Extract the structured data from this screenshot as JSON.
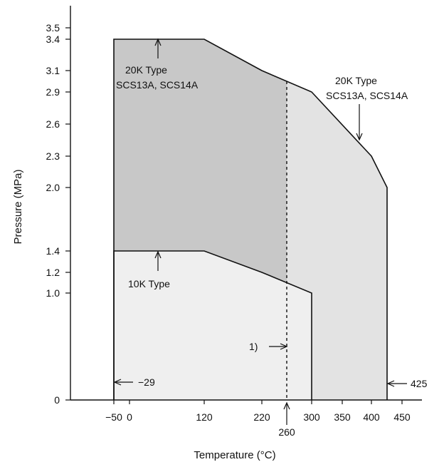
{
  "chart_data": {
    "type": "area",
    "title": "",
    "xlabel": "Temperature (°C)",
    "ylabel": "Pressure (MPa)",
    "x_tick_labels": [
      "−50",
      "0",
      "120",
      "220",
      "300",
      "350",
      "400",
      "450"
    ],
    "x_ticks": [
      -50,
      0,
      120,
      220,
      300,
      350,
      400,
      450
    ],
    "y_tick_labels": [
      "0",
      "1.0",
      "1.2",
      "1.4",
      "2.0",
      "2.3",
      "2.6",
      "2.9",
      "3.1",
      "3.4",
      "3.5"
    ],
    "y_ticks": [
      0,
      1.0,
      1.2,
      1.4,
      2.0,
      2.3,
      2.6,
      2.9,
      3.1,
      3.4,
      3.5
    ],
    "series": [
      {
        "label": "20K Type SCS13A, SCS14A",
        "color": "#c8c8c8",
        "points": [
          [
            -29,
            0
          ],
          [
            -29,
            3.4
          ],
          [
            120,
            3.4
          ],
          [
            220,
            3.1
          ],
          [
            300,
            2.9
          ],
          [
            400,
            2.3
          ],
          [
            425,
            2.0
          ],
          [
            425,
            0
          ]
        ]
      },
      {
        "label": "10K Type",
        "color": "#efefef",
        "points": [
          [
            -29,
            0
          ],
          [
            -29,
            1.4
          ],
          [
            120,
            1.4
          ],
          [
            220,
            1.2
          ],
          [
            300,
            1.0
          ],
          [
            300,
            0
          ]
        ]
      }
    ],
    "reference_line": {
      "x": 260,
      "style": "dashed"
    },
    "annotations": {
      "label_20k_left_line1": "20K Type",
      "label_20k_left_line2": "SCS13A, SCS14A",
      "label_20k_right_line1": "20K Type",
      "label_20k_right_line2": "SCS13A, SCS14A",
      "label_10k": "10K Type",
      "note_1": "1)",
      "min_temp": "−29",
      "max_temp": "425",
      "ref_temp": "260"
    }
  }
}
